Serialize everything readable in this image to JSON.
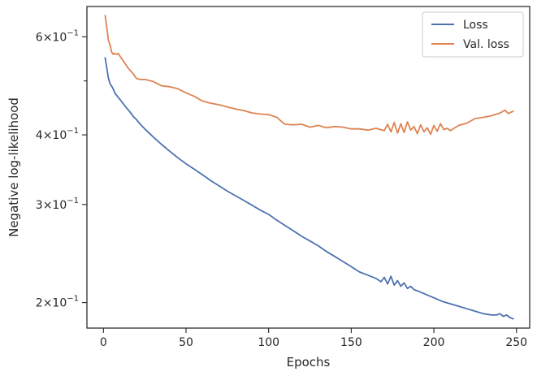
{
  "chart_data": {
    "type": "line",
    "xlabel": "Epochs",
    "ylabel": "Negative log-likelihood",
    "xscale": "linear",
    "yscale": "log",
    "xlim": [
      -10,
      258
    ],
    "ylim": [
      0.18,
      0.68
    ],
    "x_ticks": [
      0,
      50,
      100,
      150,
      200,
      250
    ],
    "x_tick_labels": [
      "0",
      "50",
      "100",
      "150",
      "200",
      "250"
    ],
    "y_ticks_major": [
      0.2,
      0.3,
      0.4,
      0.6
    ],
    "y_tick_labels_major": [
      {
        "mantissa": "2",
        "exponent": "−1"
      },
      {
        "mantissa": "3",
        "exponent": "−1"
      },
      {
        "mantissa": "4",
        "exponent": "−1"
      },
      {
        "mantissa": "6",
        "exponent": "−1"
      }
    ],
    "y_ticks_minor": [
      0.5
    ],
    "grid": false,
    "legend_position": "top-right",
    "series": [
      {
        "name": "Loss",
        "color": "#4c72b0",
        "x": [
          1,
          2,
          3,
          4,
          5,
          6,
          7,
          8,
          9,
          10,
          12,
          14,
          16,
          18,
          20,
          22,
          25,
          30,
          35,
          40,
          45,
          50,
          55,
          60,
          65,
          70,
          75,
          80,
          85,
          90,
          95,
          100,
          105,
          110,
          115,
          120,
          125,
          130,
          135,
          140,
          145,
          150,
          155,
          160,
          165,
          168,
          170,
          172,
          174,
          176,
          178,
          180,
          182,
          184,
          186,
          188,
          190,
          195,
          200,
          205,
          210,
          215,
          220,
          225,
          230,
          235,
          238,
          240,
          242,
          244,
          246,
          248
        ],
        "values": [
          0.55,
          0.528,
          0.506,
          0.494,
          0.489,
          0.483,
          0.475,
          0.471,
          0.467,
          0.463,
          0.455,
          0.447,
          0.44,
          0.432,
          0.426,
          0.419,
          0.41,
          0.397,
          0.385,
          0.374,
          0.364,
          0.355,
          0.347,
          0.339,
          0.331,
          0.324,
          0.317,
          0.311,
          0.305,
          0.299,
          0.293,
          0.288,
          0.281,
          0.275,
          0.269,
          0.263,
          0.258,
          0.253,
          0.247,
          0.242,
          0.237,
          0.232,
          0.227,
          0.224,
          0.221,
          0.218,
          0.222,
          0.216,
          0.223,
          0.215,
          0.219,
          0.214,
          0.217,
          0.212,
          0.214,
          0.211,
          0.21,
          0.207,
          0.204,
          0.201,
          0.199,
          0.197,
          0.195,
          0.193,
          0.191,
          0.19,
          0.19,
          0.191,
          0.189,
          0.19,
          0.188,
          0.187
        ]
      },
      {
        "name": "Val. loss",
        "color": "#dd8452",
        "x": [
          1,
          2,
          3,
          4,
          5,
          6,
          7,
          8,
          9,
          10,
          12,
          15,
          18,
          20,
          22,
          25,
          30,
          35,
          40,
          45,
          50,
          55,
          60,
          65,
          70,
          75,
          80,
          85,
          90,
          95,
          100,
          105,
          108,
          110,
          115,
          120,
          125,
          130,
          135,
          140,
          145,
          150,
          155,
          160,
          165,
          170,
          172,
          174,
          176,
          178,
          180,
          182,
          184,
          186,
          188,
          190,
          192,
          194,
          196,
          198,
          200,
          202,
          204,
          206,
          208,
          210,
          215,
          220,
          225,
          230,
          235,
          240,
          243,
          245,
          248
        ],
        "values": [
          0.655,
          0.625,
          0.592,
          0.58,
          0.563,
          0.558,
          0.56,
          0.558,
          0.56,
          0.554,
          0.543,
          0.527,
          0.515,
          0.505,
          0.503,
          0.503,
          0.499,
          0.49,
          0.488,
          0.484,
          0.476,
          0.469,
          0.46,
          0.456,
          0.453,
          0.449,
          0.445,
          0.442,
          0.438,
          0.436,
          0.435,
          0.43,
          0.422,
          0.418,
          0.417,
          0.418,
          0.413,
          0.416,
          0.412,
          0.414,
          0.413,
          0.41,
          0.41,
          0.408,
          0.411,
          0.407,
          0.418,
          0.405,
          0.421,
          0.403,
          0.419,
          0.404,
          0.422,
          0.408,
          0.414,
          0.402,
          0.417,
          0.405,
          0.412,
          0.401,
          0.416,
          0.406,
          0.419,
          0.409,
          0.411,
          0.407,
          0.416,
          0.42,
          0.428,
          0.43,
          0.433,
          0.438,
          0.443,
          0.437,
          0.441
        ]
      }
    ]
  }
}
